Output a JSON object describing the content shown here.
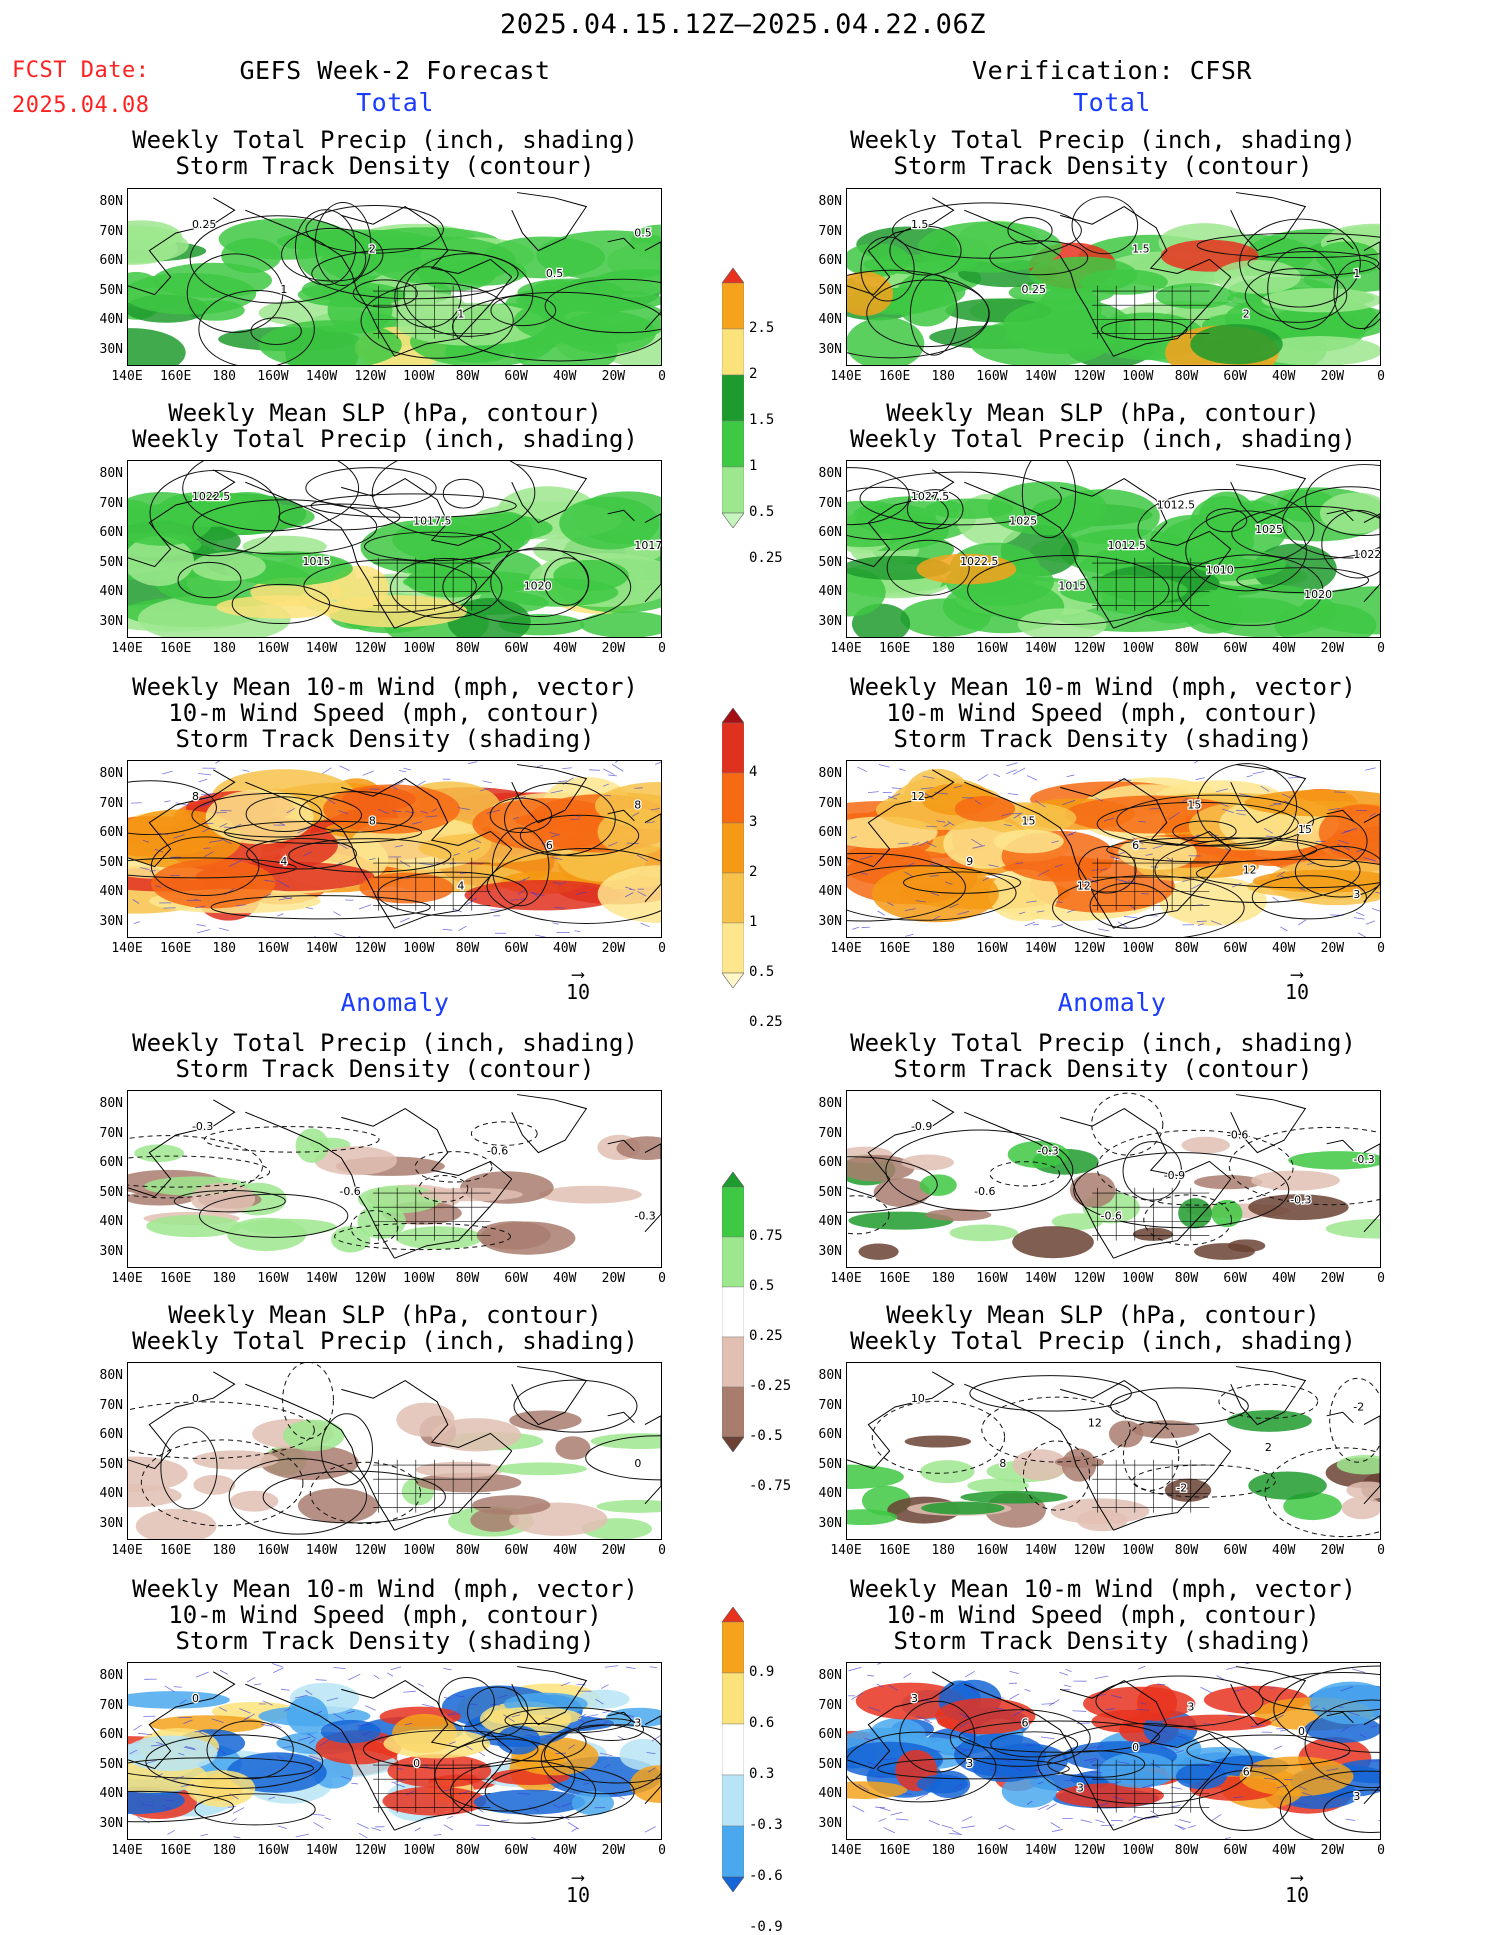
{
  "header": {
    "period": "2025.04.15.12Z–2025.04.22.06Z",
    "fcst_label": "FCST Date:",
    "fcst_date": "2025.04.08",
    "left_title": "GEFS Week-2 Forecast",
    "right_title": "Verification: CFSR",
    "total_label": "Total",
    "anomaly_label": "Anomaly"
  },
  "panel_titles": {
    "precip_storm": [
      "Weekly Total Precip (inch, shading)",
      "Storm Track Density (contour)"
    ],
    "slp_precip": [
      "Weekly Mean SLP (hPa, contour)",
      "Weekly Total Precip (inch, shading)"
    ],
    "wind": [
      "Weekly Mean 10-m Wind (mph, vector)",
      "10-m Wind Speed (mph, contour)",
      "Storm Track Density (shading)"
    ]
  },
  "axes": {
    "lat_ticks": [
      "80N",
      "70N",
      "60N",
      "50N",
      "40N",
      "30N"
    ],
    "lon_ticks": [
      "140E",
      "160E",
      "180",
      "160W",
      "140W",
      "120W",
      "100W",
      "80W",
      "60W",
      "40W",
      "20W",
      "0"
    ]
  },
  "vector_ref": "10",
  "colorbars": {
    "precip_total": {
      "labels": [
        "2.5",
        "2",
        "1.5",
        "1",
        "0.5",
        "0.25"
      ],
      "colors": [
        "#e8321e",
        "#f5a21c",
        "#fbe27a",
        "#1e9b2e",
        "#3ec843",
        "#9de88e",
        "#c6f5bd"
      ]
    },
    "storm_total": {
      "labels": [
        "4",
        "3",
        "2",
        "1",
        "0.5",
        "0.25"
      ],
      "colors": [
        "#a50f15",
        "#e0301e",
        "#f66a14",
        "#f59a14",
        "#f7c24a",
        "#fde68e",
        "#fff6c8"
      ]
    },
    "precip_anom": {
      "labels": [
        "0.75",
        "0.5",
        "0.25",
        "-0.25",
        "-0.5",
        "-0.75"
      ],
      "colors": [
        "#1e9b2e",
        "#3ec843",
        "#9de88e",
        "#ffffff",
        "#e2bfb3",
        "#a97d6e",
        "#6b4234"
      ]
    },
    "storm_anom": {
      "labels": [
        "0.9",
        "0.6",
        "0.3",
        "-0.3",
        "-0.6",
        "-0.9"
      ],
      "colors": [
        "#e8321e",
        "#f5a21c",
        "#fbe27a",
        "#ffffff",
        "#b8e4f5",
        "#4aa8ee",
        "#1565d6"
      ]
    }
  },
  "contour_labels": {
    "t1l": [
      "0.25",
      "1",
      "2",
      "1",
      "0.5",
      "0.5"
    ],
    "t1r": [
      "1.5",
      "0.25",
      "1.5",
      "2",
      "1"
    ],
    "t2l": [
      "1022.5",
      "1015",
      "1017.5",
      "1020",
      "1017.5"
    ],
    "t2r": [
      "1027.5",
      "1022.5",
      "1025",
      "1015",
      "1012.5",
      "1012.5",
      "1010",
      "1025",
      "1020",
      "1022.5"
    ],
    "t3l": [
      "8",
      "4",
      "8",
      "4",
      "6",
      "8"
    ],
    "t3r": [
      "12",
      "9",
      "15",
      "12",
      "6",
      "15",
      "12",
      "15",
      "3"
    ],
    "a1l": [
      "-0.3",
      "-0.6",
      "-0.6",
      "-0.3"
    ],
    "a1r": [
      "-0.9",
      "-0.6",
      "-0.3",
      "-0.6",
      "-0.9",
      "-0.6",
      "-0.3",
      "-0.3"
    ],
    "a2l": [
      "0",
      "0"
    ],
    "a2r": [
      "10",
      "8",
      "12",
      "-2",
      "2",
      "-2"
    ],
    "a3l": [
      "0",
      "0",
      "3"
    ],
    "a3r": [
      "3",
      "3",
      "6",
      "3",
      "0",
      "3",
      "6",
      "0",
      "3"
    ]
  }
}
